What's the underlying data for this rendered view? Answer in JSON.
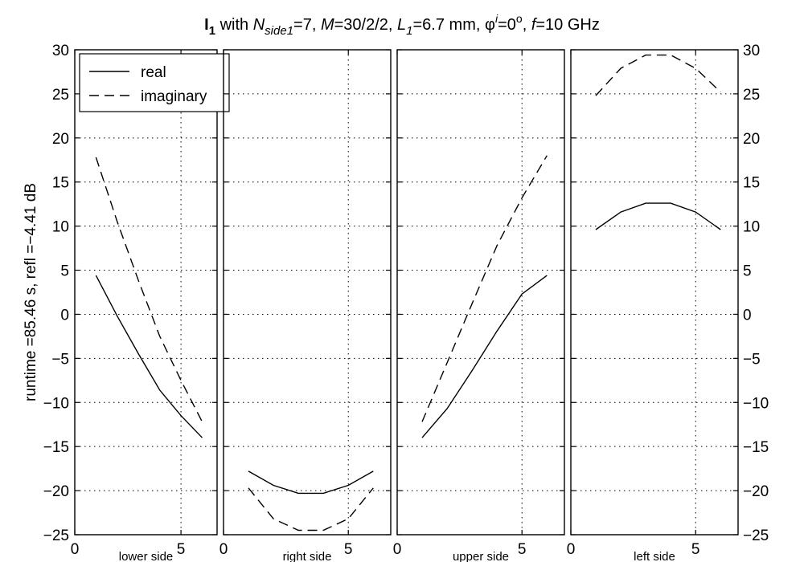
{
  "chart_data": {
    "type": "line",
    "title": {
      "parts": [
        {
          "text": "I",
          "style": "bold"
        },
        {
          "text": "1",
          "style": "bold-sub"
        },
        {
          "text": " with  ",
          "style": "normal"
        },
        {
          "text": "N",
          "style": "italic"
        },
        {
          "text": "side1",
          "style": "italic-sub"
        },
        {
          "text": "=7,  ",
          "style": "normal"
        },
        {
          "text": "M",
          "style": "italic"
        },
        {
          "text": "=30/2/2,  ",
          "style": "normal"
        },
        {
          "text": "L",
          "style": "italic"
        },
        {
          "text": "1",
          "style": "italic-sub"
        },
        {
          "text": "=6.7 mm, ",
          "style": "normal"
        },
        {
          "text": "φ",
          "style": "normal"
        },
        {
          "text": "i",
          "style": "italic-sup"
        },
        {
          "text": "=0",
          "style": "normal"
        },
        {
          "text": "o",
          "style": "sup"
        },
        {
          "text": ",  ",
          "style": "normal"
        },
        {
          "text": "f",
          "style": "italic"
        },
        {
          "text": "=10 GHz",
          "style": "normal"
        }
      ]
    },
    "ylabel": "runtime =85.46 s,  refl =−4.41 dB",
    "ylim": [
      -25,
      30
    ],
    "yticks": [
      -25,
      -20,
      -15,
      -10,
      -5,
      0,
      5,
      10,
      15,
      20,
      25,
      30
    ],
    "ytick_labels": [
      "−25",
      "−20",
      "−15",
      "−10",
      "−5",
      "0",
      "5",
      "10",
      "15",
      "20",
      "25",
      "30"
    ],
    "xlim": [
      0,
      6.7
    ],
    "xticks": [
      0,
      5
    ],
    "xtick_labels": [
      "0",
      "5"
    ],
    "grid": true,
    "legend": {
      "placement": "top-left of first panel",
      "entries": [
        {
          "label": "real",
          "style": "solid"
        },
        {
          "label": "imaginary",
          "style": "dashed"
        }
      ]
    },
    "panels": [
      {
        "xlabel": "lower side",
        "series": [
          {
            "name": "real",
            "x": [
              1,
              2,
              3,
              4,
              5,
              6
            ],
            "y": [
              4.4,
              -0.2,
              -4.5,
              -8.6,
              -11.5,
              -14.0
            ]
          },
          {
            "name": "imaginary",
            "x": [
              1,
              2,
              3,
              4,
              5,
              6
            ],
            "y": [
              17.8,
              10.5,
              3.8,
              -2.5,
              -7.5,
              -12.2
            ]
          }
        ]
      },
      {
        "xlabel": "right side",
        "series": [
          {
            "name": "real",
            "x": [
              1,
              2,
              3,
              4,
              5,
              6
            ],
            "y": [
              -17.8,
              -19.4,
              -20.3,
              -20.3,
              -19.4,
              -17.8
            ]
          },
          {
            "name": "imaginary",
            "x": [
              1,
              2,
              3,
              4,
              5,
              6
            ],
            "y": [
              -19.7,
              -23.2,
              -24.5,
              -24.5,
              -23.2,
              -19.7
            ]
          }
        ]
      },
      {
        "xlabel": "upper side",
        "series": [
          {
            "name": "real",
            "x": [
              1,
              2,
              3,
              4,
              5,
              6
            ],
            "y": [
              -14.0,
              -10.7,
              -6.4,
              -1.9,
              2.3,
              4.4
            ]
          },
          {
            "name": "imaginary",
            "x": [
              1,
              2,
              3,
              4,
              5,
              6
            ],
            "y": [
              -12.2,
              -5.5,
              1.2,
              7.8,
              13.2,
              18.0
            ]
          }
        ]
      },
      {
        "xlabel": "left side",
        "series": [
          {
            "name": "real",
            "x": [
              1,
              2,
              3,
              4,
              5,
              6
            ],
            "y": [
              9.6,
              11.6,
              12.6,
              12.6,
              11.6,
              9.6
            ]
          },
          {
            "name": "imaginary",
            "x": [
              1,
              2,
              3,
              4,
              5,
              6
            ],
            "y": [
              24.8,
              27.9,
              29.4,
              29.4,
              27.9,
              25.2
            ]
          }
        ]
      }
    ]
  }
}
